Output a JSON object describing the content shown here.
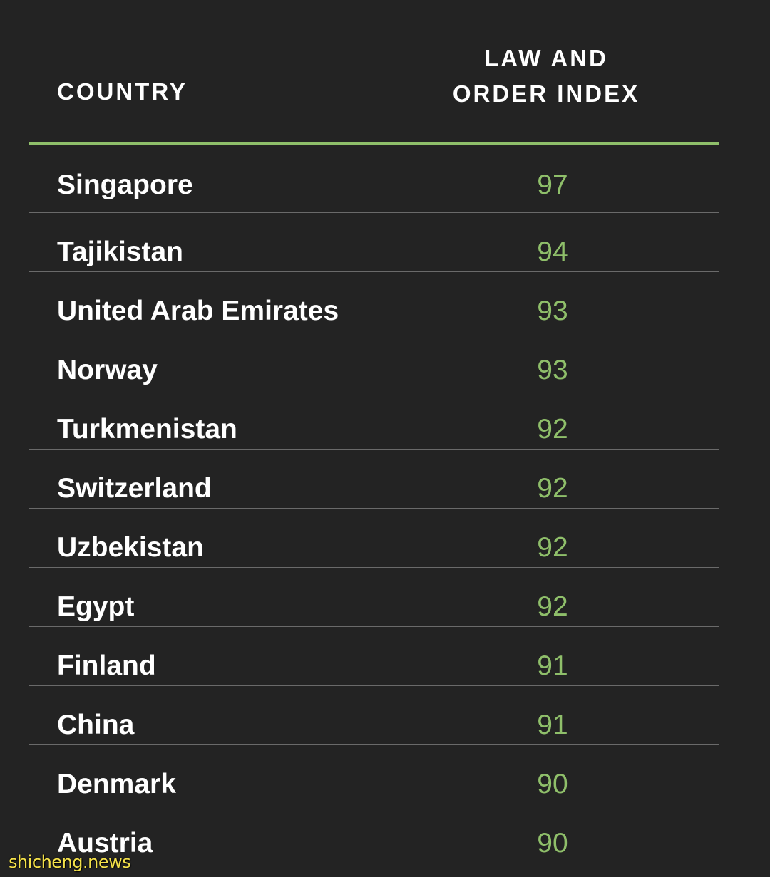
{
  "table": {
    "headers": {
      "country": "COUNTRY",
      "index_line1": "LAW AND",
      "index_line2": "ORDER INDEX"
    },
    "rows": [
      {
        "country": "Singapore",
        "score": "97"
      },
      {
        "country": "Tajikistan",
        "score": "94"
      },
      {
        "country": "United Arab Emirates",
        "score": "93"
      },
      {
        "country": "Norway",
        "score": "93"
      },
      {
        "country": "Turkmenistan",
        "score": "92"
      },
      {
        "country": "Switzerland",
        "score": "92"
      },
      {
        "country": "Uzbekistan",
        "score": "92"
      },
      {
        "country": "Egypt",
        "score": "92"
      },
      {
        "country": "Finland",
        "score": "91"
      },
      {
        "country": "China",
        "score": "91"
      },
      {
        "country": "Denmark",
        "score": "90"
      },
      {
        "country": "Austria",
        "score": "90"
      }
    ]
  },
  "colors": {
    "background": "#232323",
    "accent": "#8fbf6a",
    "divider": "#6a6a6a",
    "watermark": "#f5e24a"
  },
  "watermark": "shicheng.news"
}
